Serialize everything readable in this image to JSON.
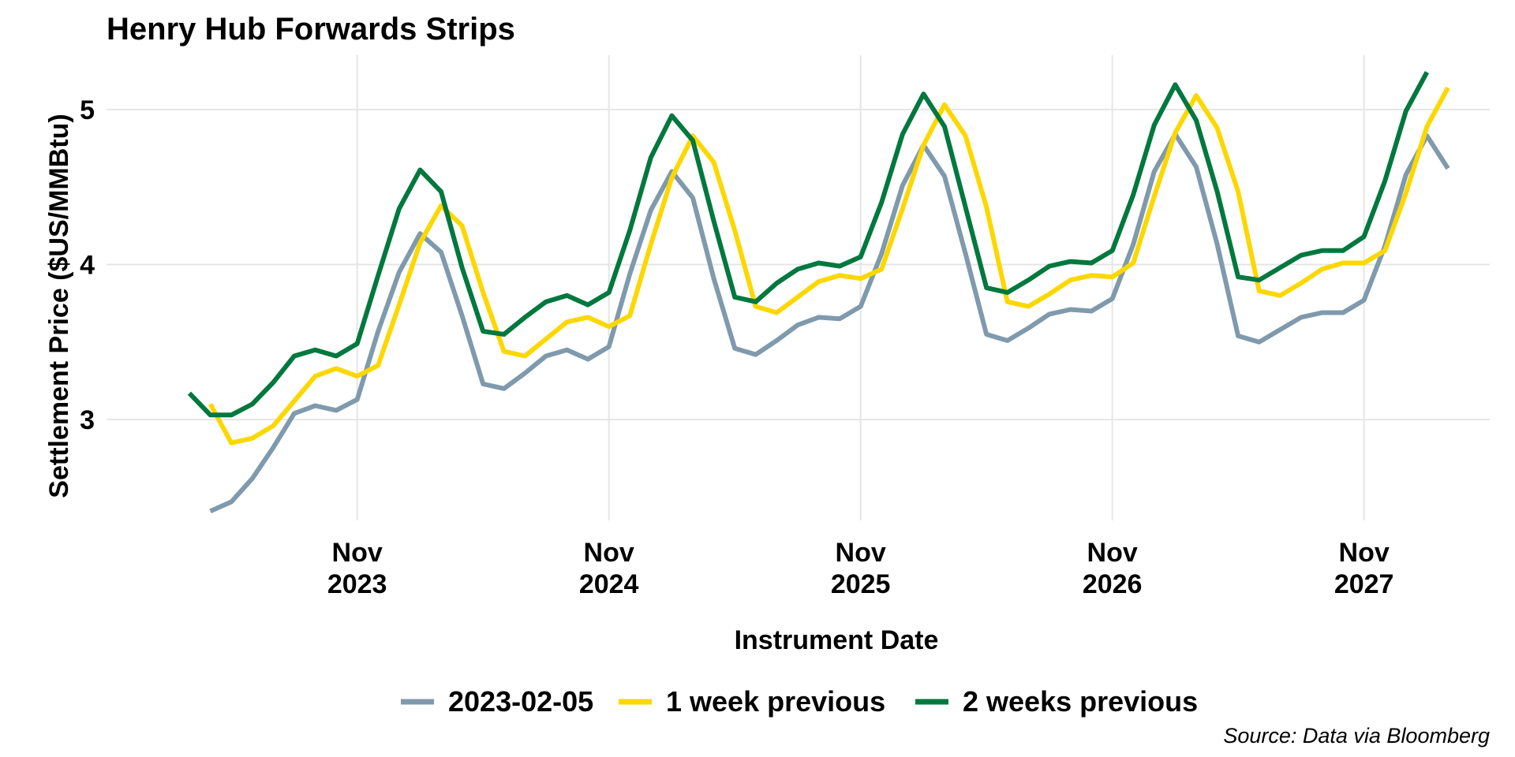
{
  "chart_data": {
    "type": "line",
    "title": "Henry Hub Forwards Strips",
    "xlabel": "Instrument Date",
    "ylabel": "Settlement Price ($US/MMBtu)",
    "caption": "Source: Data via Bloomberg",
    "grid": true,
    "legend_position": "bottom",
    "x_start": "2023-03",
    "x_ticks": [
      {
        "month_index": 8,
        "line1": "Nov",
        "line2": "2023"
      },
      {
        "month_index": 20,
        "line1": "Nov",
        "line2": "2024"
      },
      {
        "month_index": 32,
        "line1": "Nov",
        "line2": "2025"
      },
      {
        "month_index": 44,
        "line1": "Nov",
        "line2": "2026"
      },
      {
        "month_index": 56,
        "line1": "Nov",
        "line2": "2027"
      }
    ],
    "y_ticks": [
      3,
      4,
      5
    ],
    "ylim": [
      2.35,
      5.35
    ],
    "series": [
      {
        "name": "2023-02-05",
        "color": "#7f9aac",
        "start_index": 1,
        "values": [
          2.41,
          2.47,
          2.62,
          2.82,
          3.04,
          3.09,
          3.06,
          3.13,
          3.57,
          3.95,
          4.2,
          4.08,
          3.67,
          3.23,
          3.2,
          3.3,
          3.41,
          3.45,
          3.39,
          3.47,
          3.94,
          4.35,
          4.6,
          4.43,
          3.91,
          3.46,
          3.42,
          3.51,
          3.61,
          3.66,
          3.65,
          3.73,
          4.07,
          4.51,
          4.77,
          4.57,
          4.07,
          3.55,
          3.51,
          3.59,
          3.68,
          3.71,
          3.7,
          3.78,
          4.13,
          4.6,
          4.84,
          4.63,
          4.13,
          3.54,
          3.5,
          3.58,
          3.66,
          3.69,
          3.69,
          3.77,
          4.12,
          4.58,
          4.83,
          4.62
        ]
      },
      {
        "name": "1 week previous",
        "color": "#fcd700",
        "start_index": 1,
        "values": [
          3.1,
          2.85,
          2.88,
          2.96,
          3.12,
          3.28,
          3.33,
          3.28,
          3.35,
          3.74,
          4.14,
          4.38,
          4.25,
          3.82,
          3.44,
          3.41,
          3.52,
          3.63,
          3.66,
          3.6,
          3.67,
          4.13,
          4.56,
          4.83,
          4.66,
          4.22,
          3.73,
          3.69,
          3.79,
          3.89,
          3.93,
          3.91,
          3.97,
          4.36,
          4.77,
          5.03,
          4.83,
          4.37,
          3.76,
          3.73,
          3.81,
          3.9,
          3.93,
          3.92,
          4.01,
          4.44,
          4.85,
          5.09,
          4.88,
          4.47,
          3.83,
          3.8,
          3.88,
          3.97,
          4.01,
          4.01,
          4.09,
          4.46,
          4.89,
          5.14
        ]
      },
      {
        "name": "2 weeks previous",
        "color": "#00783e",
        "start_index": 0,
        "values": [
          3.17,
          3.03,
          3.03,
          3.1,
          3.24,
          3.41,
          3.45,
          3.41,
          3.49,
          3.93,
          4.36,
          4.61,
          4.47,
          3.98,
          3.57,
          3.55,
          3.66,
          3.76,
          3.8,
          3.74,
          3.82,
          4.22,
          4.69,
          4.96,
          4.8,
          4.28,
          3.79,
          3.76,
          3.88,
          3.97,
          4.01,
          3.99,
          4.05,
          4.4,
          4.84,
          5.1,
          4.89,
          4.37,
          3.85,
          3.82,
          3.9,
          3.99,
          4.02,
          4.01,
          4.09,
          4.45,
          4.9,
          5.16,
          4.93,
          4.47,
          3.92,
          3.9,
          3.98,
          4.06,
          4.09,
          4.09,
          4.18,
          4.54,
          4.99,
          5.24
        ]
      }
    ]
  }
}
